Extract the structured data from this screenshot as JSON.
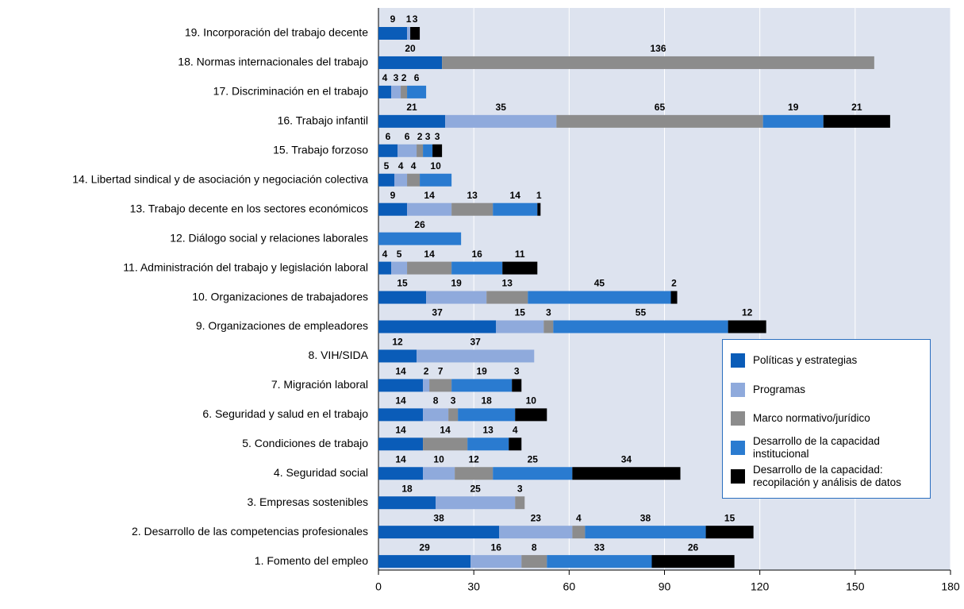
{
  "chart_data": {
    "type": "stacked_bar_horizontal",
    "categories": [
      "19. Incorporación del trabajo decente",
      "18. Normas internacionales del trabajo",
      "17. Discriminación en el trabajo",
      "16. Trabajo infantil",
      "15. Trabajo forzoso",
      "14. Libertad sindical y de asociación y negociación colectiva",
      "13. Trabajo decente en los sectores económicos",
      "12. Diálogo social y relaciones laborales",
      "11. Administración del trabajo y legislación laboral",
      "10. Organizaciones de trabajadores",
      "9. Organizaciones de empleadores",
      "8. VIH/SIDA",
      "7. Migración laboral",
      "6. Seguridad y salud en el trabajo",
      "5. Condiciones de trabajo",
      "4. Seguridad social",
      "3. Empresas sostenibles",
      "2. Desarrollo de las competencias profesionales",
      "1. Fomento del empleo"
    ],
    "series": [
      {
        "name": "Políticas y estrategias",
        "color": "#0a5cb8",
        "values": [
          9,
          20,
          4,
          21,
          6,
          5,
          9,
          null,
          4,
          15,
          37,
          12,
          14,
          14,
          14,
          14,
          18,
          38,
          29
        ]
      },
      {
        "name": "Programas",
        "color": "#8faadc",
        "values": [
          1,
          null,
          3,
          35,
          6,
          4,
          14,
          null,
          5,
          19,
          15,
          37,
          2,
          8,
          null,
          10,
          25,
          23,
          16
        ]
      },
      {
        "name": "Marco normativo/jurídico",
        "color": "#8c8c8c",
        "values": [
          null,
          136,
          2,
          65,
          2,
          4,
          13,
          null,
          14,
          13,
          3,
          null,
          7,
          3,
          14,
          12,
          3,
          4,
          8
        ]
      },
      {
        "name": "Desarrollo de la capacidad institucional",
        "color": "#2a7bd0",
        "values": [
          null,
          null,
          6,
          19,
          3,
          10,
          14,
          26,
          16,
          45,
          55,
          null,
          19,
          18,
          13,
          25,
          null,
          38,
          33
        ]
      },
      {
        "name": "Desarrollo de la capacidad: recopilación y análisis de datos",
        "color": "#000000",
        "values": [
          3,
          null,
          null,
          21,
          3,
          null,
          1,
          null,
          11,
          2,
          12,
          null,
          3,
          10,
          4,
          34,
          null,
          15,
          26
        ]
      }
    ],
    "xlim": [
      0,
      180
    ],
    "xticks": [
      0,
      30,
      60,
      90,
      120,
      150,
      180
    ],
    "grid": true,
    "legend": "lower right"
  }
}
